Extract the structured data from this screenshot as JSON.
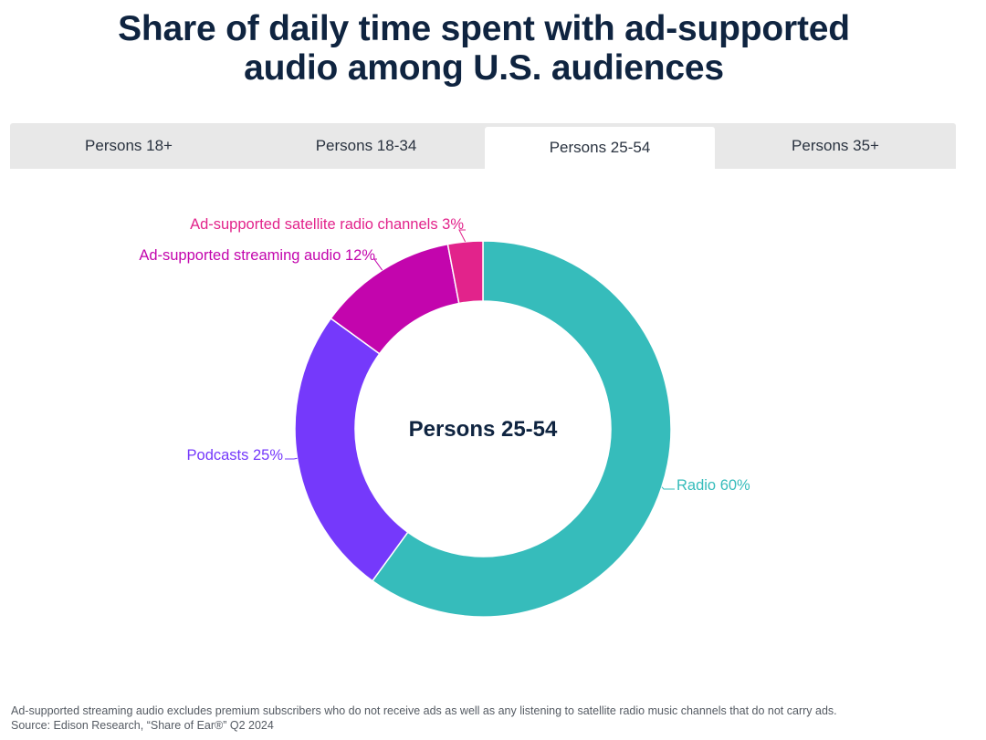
{
  "title": {
    "line1": "Share of daily time spent with ad-supported",
    "line2": "audio among U.S. audiences"
  },
  "tabs": [
    {
      "label": "Persons 18+",
      "active": false
    },
    {
      "label": "Persons 18-34",
      "active": false
    },
    {
      "label": "Persons 25-54",
      "active": true
    },
    {
      "label": "Persons 35+",
      "active": false
    }
  ],
  "chart_data": {
    "type": "pie",
    "variant": "donut",
    "center_label": "Persons 25-54",
    "slices": [
      {
        "label": "Radio",
        "value": 60,
        "color": "#36bcbb",
        "label_text": "Radio 60%"
      },
      {
        "label": "Podcasts",
        "value": 25,
        "color": "#7539fb",
        "label_text": "Podcasts 25%"
      },
      {
        "label": "Ad-supported streaming audio",
        "value": 12,
        "color": "#c305ad",
        "label_text": "Ad-supported streaming audio 12%"
      },
      {
        "label": "Ad-supported satellite radio channels",
        "value": 3,
        "color": "#e2238b",
        "label_text": "Ad-supported satellite radio channels 3%"
      }
    ]
  },
  "footnote": {
    "note": "Ad-supported streaming audio excludes premium subscribers who do not receive ads as well as any listening to satellite radio music channels that do not carry ads.",
    "source": "Source: Edison Research, “Share of Ear®” Q2 2024"
  }
}
